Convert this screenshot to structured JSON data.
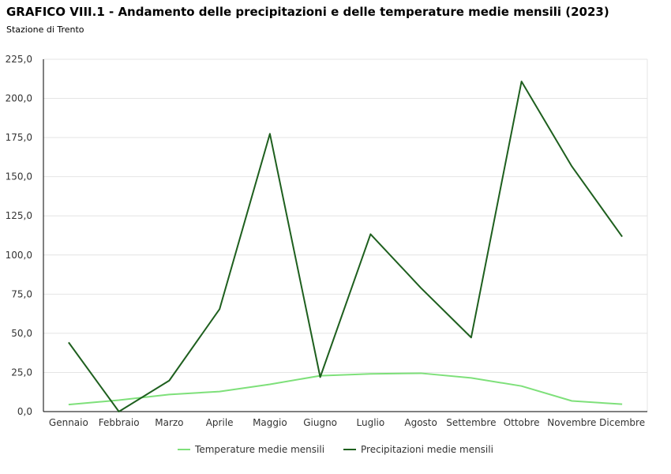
{
  "header": {
    "title": "GRAFICO VIII.1 - Andamento delle precipitazioni e delle temperature medie mensili (2023)",
    "subtitle": "Stazione di Trento"
  },
  "chart_data": {
    "type": "line",
    "title": "GRAFICO VIII.1 - Andamento delle precipitazioni e delle temperature medie mensili (2023)",
    "subtitle": "Stazione di Trento",
    "xlabel": "",
    "ylabel": "",
    "ylim": [
      0,
      225
    ],
    "yticks": [
      "0,0",
      "25,0",
      "50,0",
      "75,0",
      "100,0",
      "125,0",
      "150,0",
      "175,0",
      "200,0",
      "225,0"
    ],
    "grid": true,
    "legend": "bottom",
    "categories": [
      "Gennaio",
      "Febbraio",
      "Marzo",
      "Aprile",
      "Maggio",
      "Giugno",
      "Luglio",
      "Agosto",
      "Settembre",
      "Ottobre",
      "Novembre",
      "Dicembre"
    ],
    "series": [
      {
        "name": "Temperature medie mensili",
        "color": "#7ee07a",
        "values": [
          4.5,
          7.3,
          10.9,
          12.8,
          17.4,
          22.9,
          24.1,
          24.5,
          21.5,
          16.3,
          6.8,
          4.7
        ]
      },
      {
        "name": "Precipitazioni medie mensili",
        "color": "#1e5f1e",
        "values": [
          44.2,
          0.0,
          19.8,
          65.4,
          177.4,
          22.0,
          113.3,
          79.0,
          47.3,
          210.8,
          156.6,
          111.7
        ]
      }
    ]
  }
}
